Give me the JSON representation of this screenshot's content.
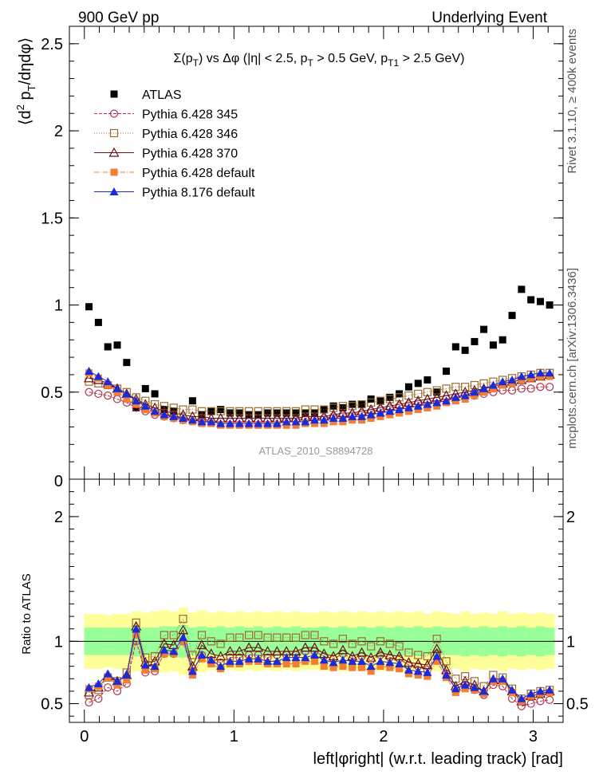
{
  "header": {
    "left": "900 GeV pp",
    "right": "Underlying Event"
  },
  "side": {
    "rivet": "Rivet 3.1.10, ≥ 400k events",
    "mcplots": "mcplots.cern.ch [arXiv:1306.3436]"
  },
  "chart_data": [
    {
      "type": "scatter",
      "title": "Σ(pT) vs Δφ (|η| < 2.5, pT > 0.5 GeV, pT1 > 2.5 GeV)",
      "ylabel": "⟨d² pT/dηdφ⟩",
      "watermark": "ATLAS_2010_S8894728",
      "xlim": [
        -0.1,
        3.2
      ],
      "ylim": [
        0,
        2.6
      ],
      "yticks": [
        0.5,
        1,
        1.5,
        2,
        2.5
      ],
      "ytick_labels": [
        "0.5",
        "1",
        "1.5",
        "2",
        "2.5"
      ],
      "bottom_tick_label": "0",
      "legend": {
        "position": "top-left",
        "entries": [
          {
            "label": "ATLAS",
            "color": "#000000",
            "marker": "filled-square"
          },
          {
            "label": "Pythia 6.428 345",
            "color": "#b3334d",
            "marker": "open-circle"
          },
          {
            "label": "Pythia 6.428 346",
            "color": "#9c6b2e",
            "marker": "open-square"
          },
          {
            "label": "Pythia 6.428 370",
            "color": "#6a1010",
            "marker": "open-triangle"
          },
          {
            "label": "Pythia 6.428 default",
            "color": "#f27d33",
            "marker": "filled-square"
          },
          {
            "label": "Pythia 8.176 default",
            "color": "#1c2bd9",
            "marker": "filled-triangle"
          }
        ]
      },
      "x": [
        0.031,
        0.094,
        0.157,
        0.22,
        0.283,
        0.346,
        0.408,
        0.471,
        0.534,
        0.597,
        0.66,
        0.723,
        0.785,
        0.848,
        0.911,
        0.974,
        1.037,
        1.1,
        1.162,
        1.225,
        1.288,
        1.351,
        1.414,
        1.477,
        1.539,
        1.602,
        1.665,
        1.728,
        1.791,
        1.854,
        1.916,
        1.979,
        2.042,
        2.105,
        2.168,
        2.231,
        2.293,
        2.356,
        2.419,
        2.482,
        2.545,
        2.608,
        2.67,
        2.733,
        2.796,
        2.859,
        2.922,
        2.985,
        3.048,
        3.11
      ],
      "series": [
        {
          "name": "ATLAS",
          "values": [
            0.99,
            0.9,
            0.76,
            0.77,
            0.67,
            0.41,
            0.52,
            0.49,
            0.4,
            0.39,
            0.34,
            0.45,
            0.37,
            0.39,
            0.4,
            0.38,
            0.38,
            0.37,
            0.37,
            0.38,
            0.38,
            0.38,
            0.38,
            0.38,
            0.38,
            0.4,
            0.42,
            0.41,
            0.43,
            0.43,
            0.46,
            0.45,
            0.47,
            0.49,
            0.53,
            0.55,
            0.57,
            0.5,
            0.62,
            0.76,
            0.74,
            0.79,
            0.86,
            0.77,
            0.8,
            0.94,
            1.09,
            1.03,
            1.02,
            1.0
          ]
        },
        {
          "name": "Pythia 6.428 345",
          "values": [
            0.5,
            0.49,
            0.48,
            0.46,
            0.44,
            0.41,
            0.39,
            0.37,
            0.36,
            0.35,
            0.34,
            0.34,
            0.33,
            0.33,
            0.33,
            0.33,
            0.33,
            0.33,
            0.33,
            0.33,
            0.34,
            0.34,
            0.34,
            0.35,
            0.35,
            0.35,
            0.36,
            0.37,
            0.37,
            0.38,
            0.39,
            0.4,
            0.41,
            0.42,
            0.43,
            0.44,
            0.44,
            0.45,
            0.46,
            0.47,
            0.48,
            0.48,
            0.49,
            0.5,
            0.51,
            0.51,
            0.52,
            0.52,
            0.53,
            0.53
          ]
        },
        {
          "name": "Pythia 6.428 346",
          "values": [
            0.56,
            0.55,
            0.54,
            0.52,
            0.5,
            0.47,
            0.45,
            0.43,
            0.42,
            0.41,
            0.4,
            0.4,
            0.39,
            0.39,
            0.39,
            0.39,
            0.39,
            0.39,
            0.39,
            0.39,
            0.39,
            0.39,
            0.39,
            0.4,
            0.4,
            0.4,
            0.41,
            0.42,
            0.42,
            0.43,
            0.44,
            0.45,
            0.46,
            0.47,
            0.48,
            0.49,
            0.5,
            0.51,
            0.52,
            0.53,
            0.53,
            0.54,
            0.55,
            0.56,
            0.57,
            0.58,
            0.59,
            0.6,
            0.61,
            0.61
          ]
        },
        {
          "name": "Pythia 6.428 370",
          "values": [
            0.58,
            0.57,
            0.55,
            0.52,
            0.49,
            0.46,
            0.43,
            0.41,
            0.39,
            0.38,
            0.37,
            0.36,
            0.36,
            0.35,
            0.35,
            0.35,
            0.35,
            0.35,
            0.35,
            0.35,
            0.35,
            0.35,
            0.35,
            0.36,
            0.36,
            0.36,
            0.37,
            0.38,
            0.38,
            0.39,
            0.4,
            0.41,
            0.42,
            0.43,
            0.44,
            0.45,
            0.46,
            0.47,
            0.48,
            0.49,
            0.5,
            0.51,
            0.52,
            0.53,
            0.55,
            0.56,
            0.57,
            0.58,
            0.59,
            0.6
          ]
        },
        {
          "name": "Pythia 6.428 default",
          "values": [
            0.61,
            0.58,
            0.54,
            0.5,
            0.46,
            0.43,
            0.4,
            0.38,
            0.36,
            0.35,
            0.34,
            0.33,
            0.32,
            0.32,
            0.31,
            0.31,
            0.31,
            0.31,
            0.31,
            0.31,
            0.31,
            0.31,
            0.31,
            0.32,
            0.32,
            0.32,
            0.33,
            0.33,
            0.34,
            0.34,
            0.35,
            0.36,
            0.37,
            0.38,
            0.39,
            0.4,
            0.41,
            0.42,
            0.44,
            0.45,
            0.46,
            0.48,
            0.5,
            0.52,
            0.54,
            0.55,
            0.57,
            0.58,
            0.59,
            0.59
          ]
        },
        {
          "name": "Pythia 8.176 default",
          "values": [
            0.62,
            0.59,
            0.56,
            0.52,
            0.49,
            0.45,
            0.42,
            0.39,
            0.37,
            0.36,
            0.35,
            0.34,
            0.33,
            0.33,
            0.32,
            0.32,
            0.32,
            0.32,
            0.32,
            0.32,
            0.32,
            0.33,
            0.33,
            0.33,
            0.34,
            0.34,
            0.35,
            0.35,
            0.36,
            0.36,
            0.37,
            0.38,
            0.39,
            0.4,
            0.41,
            0.42,
            0.43,
            0.44,
            0.45,
            0.47,
            0.48,
            0.5,
            0.52,
            0.54,
            0.56,
            0.57,
            0.59,
            0.6,
            0.61,
            0.61
          ]
        }
      ]
    },
    {
      "type": "scatter",
      "ylabel": "Ratio to ATLAS",
      "xlabel": "left|φright| (w.r.t. leading track) [rad]",
      "xlim": [
        -0.1,
        3.2
      ],
      "ylim": [
        0.35,
        2.3
      ],
      "yticks": [
        0.5,
        1,
        2
      ],
      "ytick_labels": [
        "0.5",
        "1",
        "2"
      ],
      "xticks": [
        0,
        1,
        2,
        3
      ],
      "xtick_labels": [
        "0",
        "1",
        "2",
        "3"
      ],
      "band_stat_halfwidth": [
        0.11,
        0.11,
        0.11,
        0.11,
        0.11,
        0.12,
        0.11,
        0.11,
        0.12,
        0.12,
        0.13,
        0.11,
        0.12,
        0.11,
        0.12,
        0.11,
        0.12,
        0.11,
        0.12,
        0.11,
        0.12,
        0.11,
        0.12,
        0.11,
        0.11,
        0.12,
        0.11,
        0.12,
        0.11,
        0.12,
        0.11,
        0.12,
        0.11,
        0.12,
        0.11,
        0.12,
        0.11,
        0.12,
        0.11,
        0.11,
        0.12,
        0.11,
        0.12,
        0.11,
        0.12,
        0.11,
        0.12,
        0.11,
        0.12,
        0.11
      ],
      "band_total_halfwidth": [
        0.22,
        0.22,
        0.21,
        0.22,
        0.22,
        0.24,
        0.23,
        0.24,
        0.25,
        0.24,
        0.27,
        0.23,
        0.25,
        0.23,
        0.24,
        0.23,
        0.24,
        0.23,
        0.24,
        0.23,
        0.24,
        0.23,
        0.24,
        0.23,
        0.23,
        0.24,
        0.23,
        0.24,
        0.23,
        0.24,
        0.23,
        0.24,
        0.23,
        0.24,
        0.23,
        0.24,
        0.22,
        0.24,
        0.23,
        0.22,
        0.24,
        0.22,
        0.23,
        0.22,
        0.24,
        0.22,
        0.23,
        0.22,
        0.23,
        0.22
      ],
      "series": [
        {
          "name": "Pythia 6.428 345",
          "values": [
            0.51,
            0.54,
            0.63,
            0.6,
            0.66,
            1.0,
            0.75,
            0.76,
            0.9,
            0.9,
            1.0,
            0.76,
            0.89,
            0.85,
            0.83,
            0.87,
            0.87,
            0.89,
            0.89,
            0.87,
            0.89,
            0.89,
            0.89,
            0.92,
            0.92,
            0.88,
            0.86,
            0.9,
            0.86,
            0.88,
            0.85,
            0.89,
            0.87,
            0.86,
            0.81,
            0.8,
            0.77,
            0.9,
            0.74,
            0.62,
            0.65,
            0.61,
            0.57,
            0.65,
            0.64,
            0.54,
            0.48,
            0.5,
            0.52,
            0.53
          ]
        },
        {
          "name": "Pythia 6.428 346",
          "values": [
            0.57,
            0.61,
            0.71,
            0.68,
            0.75,
            1.15,
            0.87,
            0.88,
            1.05,
            1.05,
            1.18,
            0.89,
            1.05,
            1.0,
            0.98,
            1.03,
            1.03,
            1.05,
            1.05,
            1.03,
            1.03,
            1.03,
            1.03,
            1.05,
            1.05,
            1.0,
            0.98,
            1.02,
            0.98,
            1.0,
            0.96,
            1.0,
            0.98,
            0.96,
            0.91,
            0.89,
            0.88,
            1.02,
            0.84,
            0.7,
            0.72,
            0.68,
            0.64,
            0.73,
            0.71,
            0.62,
            0.54,
            0.58,
            0.6,
            0.61
          ]
        },
        {
          "name": "Pythia 6.428 370",
          "values": [
            0.59,
            0.63,
            0.72,
            0.68,
            0.73,
            1.12,
            0.83,
            0.84,
            0.98,
            0.97,
            1.09,
            0.8,
            0.97,
            0.9,
            0.88,
            0.92,
            0.92,
            0.95,
            0.95,
            0.92,
            0.92,
            0.92,
            0.92,
            0.95,
            0.95,
            0.9,
            0.88,
            0.93,
            0.88,
            0.91,
            0.87,
            0.91,
            0.89,
            0.88,
            0.83,
            0.82,
            0.81,
            0.94,
            0.77,
            0.64,
            0.68,
            0.65,
            0.6,
            0.69,
            0.69,
            0.6,
            0.52,
            0.56,
            0.58,
            0.6
          ]
        },
        {
          "name": "Pythia 6.428 default",
          "values": [
            0.62,
            0.64,
            0.71,
            0.65,
            0.69,
            1.05,
            0.77,
            0.78,
            0.9,
            0.9,
            1.0,
            0.73,
            0.86,
            0.82,
            0.78,
            0.82,
            0.82,
            0.84,
            0.84,
            0.82,
            0.82,
            0.82,
            0.82,
            0.84,
            0.84,
            0.8,
            0.79,
            0.8,
            0.79,
            0.79,
            0.76,
            0.8,
            0.79,
            0.78,
            0.74,
            0.73,
            0.72,
            0.84,
            0.71,
            0.59,
            0.62,
            0.61,
            0.58,
            0.68,
            0.68,
            0.59,
            0.52,
            0.56,
            0.58,
            0.59
          ]
        },
        {
          "name": "Pythia 8.176 default",
          "values": [
            0.63,
            0.66,
            0.74,
            0.68,
            0.73,
            1.1,
            0.81,
            0.8,
            0.93,
            0.92,
            1.03,
            0.76,
            0.89,
            0.85,
            0.8,
            0.84,
            0.84,
            0.86,
            0.86,
            0.84,
            0.84,
            0.87,
            0.87,
            0.87,
            0.89,
            0.85,
            0.83,
            0.85,
            0.84,
            0.84,
            0.8,
            0.84,
            0.83,
            0.82,
            0.77,
            0.76,
            0.75,
            0.88,
            0.73,
            0.62,
            0.65,
            0.63,
            0.6,
            0.7,
            0.7,
            0.61,
            0.54,
            0.58,
            0.6,
            0.61
          ]
        }
      ]
    }
  ]
}
